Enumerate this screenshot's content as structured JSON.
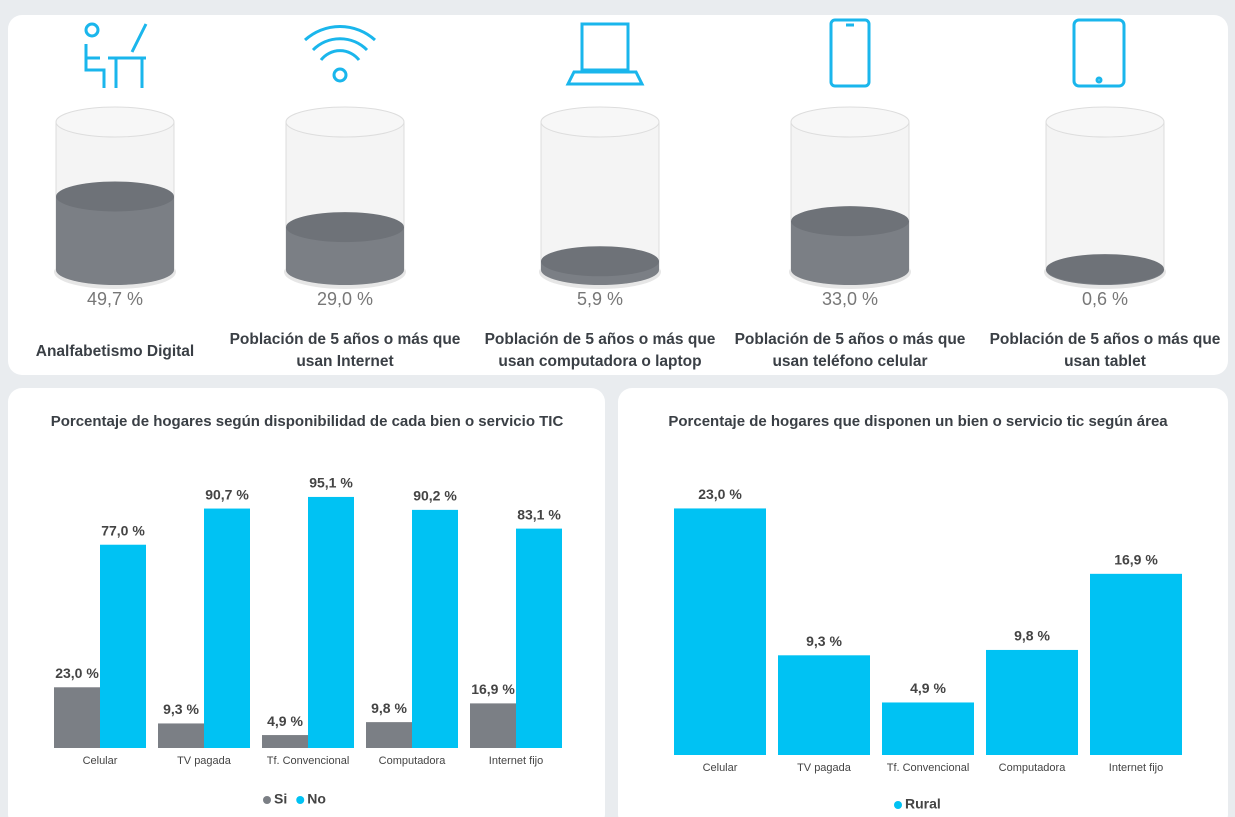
{
  "chart_data": [
    {
      "type": "cylinder",
      "categories": [
        "Analfabetismo Digital",
        "Población de 5 años o más que usan Internet",
        "Población de 5 años o más que usan computadora o laptop",
        "Población de 5 años o más que usan teléfono celular",
        "Población de 5 años o más que usan tablet"
      ],
      "values": [
        49.7,
        29.0,
        5.9,
        33.0,
        0.6
      ],
      "value_labels": [
        "49,7 %",
        "29,0 %",
        "5,9 %",
        "33,0 %",
        "0,6 %"
      ],
      "ylim": [
        0,
        100
      ],
      "color": "#7b7f85"
    },
    {
      "type": "bar",
      "title": "Porcentaje de hogares según disponibilidad de cada bien o servicio TIC",
      "categories": [
        "Celular",
        "TV pagada",
        "Tf. Convencional",
        "Computadora",
        "Internet fijo"
      ],
      "series": [
        {
          "name": "Si",
          "color": "#7b7f85",
          "values": [
            23.0,
            9.3,
            4.9,
            9.8,
            16.9
          ],
          "value_labels": [
            "23,0 %",
            "9,3 %",
            "4,9 %",
            "9,8 %",
            "16,9 %"
          ]
        },
        {
          "name": "No",
          "color": "#00c2f3",
          "values": [
            77.0,
            90.7,
            95.1,
            90.2,
            83.1
          ],
          "value_labels": [
            "77,0 %",
            "90,7 %",
            "95,1 %",
            "90,2 %",
            "83,1 %"
          ]
        }
      ],
      "ylim": [
        0,
        100
      ],
      "legend": "bottom"
    },
    {
      "type": "bar",
      "title": "Porcentaje de hogares que disponen un bien o servicio tic según área",
      "categories": [
        "Celular",
        "TV pagada",
        "Tf. Convencional",
        "Computadora",
        "Internet fijo"
      ],
      "series": [
        {
          "name": "Rural",
          "color": "#00c2f3",
          "values": [
            23.0,
            9.3,
            4.9,
            9.8,
            16.9
          ],
          "value_labels": [
            "23,0 %",
            "9,3 %",
            "4,9 %",
            "9,8 %",
            "16,9 %"
          ]
        }
      ],
      "ylim": [
        0,
        25
      ],
      "legend": "bottom"
    }
  ]
}
